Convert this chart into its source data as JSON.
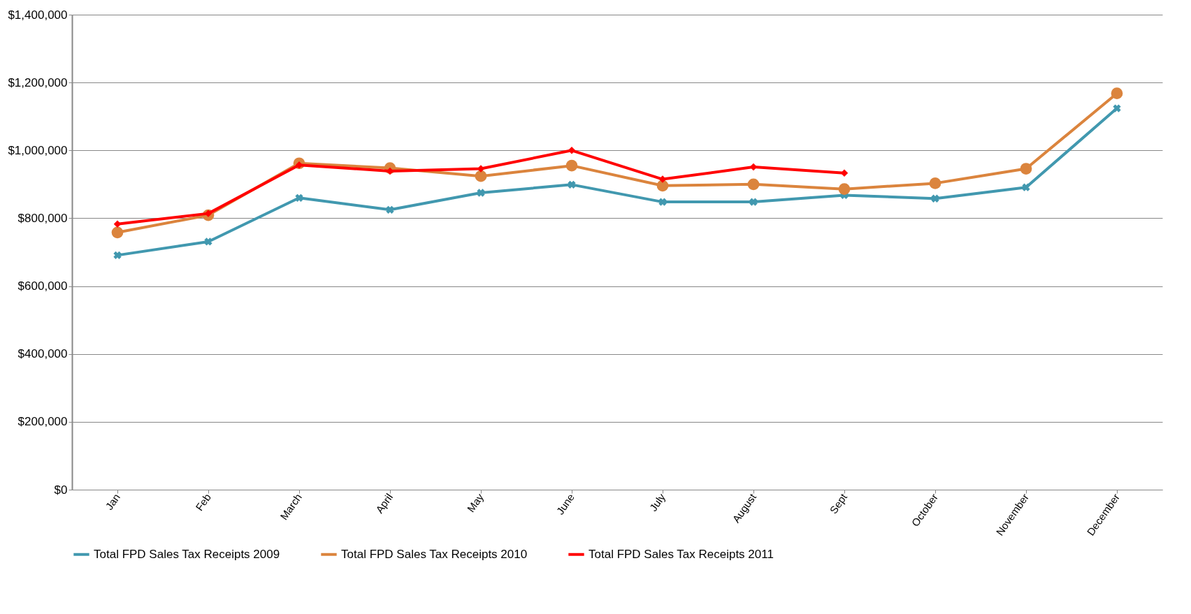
{
  "chart_data": {
    "type": "line",
    "categories": [
      "Jan",
      "Feb",
      "March",
      "April",
      "May",
      "June",
      "July",
      "August",
      "Sept",
      "October",
      "November",
      "December"
    ],
    "series": [
      {
        "name": "Total FPD Sales Tax Receipts 2009",
        "color": "#4198af",
        "marker": "cross",
        "values": [
          691000,
          731000,
          860000,
          825000,
          875000,
          899000,
          848000,
          848000,
          868000,
          858000,
          891000,
          1124000
        ]
      },
      {
        "name": "Total FPD Sales Tax Receipts 2010",
        "color": "#db843d",
        "marker": "circle",
        "values": [
          758000,
          809000,
          962000,
          948000,
          924000,
          955000,
          896000,
          900000,
          886000,
          903000,
          946000,
          1168000
        ]
      },
      {
        "name": "Total FPD Sales Tax Receipts 2011",
        "color": "#ff0000",
        "marker": "diamond",
        "values": [
          783000,
          814000,
          957000,
          939000,
          946000,
          1000000,
          915000,
          951000,
          933000,
          null,
          null,
          null
        ]
      }
    ],
    "ylim": [
      0,
      1400000
    ],
    "yticks": [
      {
        "value": 0,
        "label": "$0"
      },
      {
        "value": 200000,
        "label": "$200,000"
      },
      {
        "value": 400000,
        "label": "$400,000"
      },
      {
        "value": 600000,
        "label": "$600,000"
      },
      {
        "value": 800000,
        "label": "$800,000"
      },
      {
        "value": 1000000,
        "label": "$1,000,000"
      },
      {
        "value": 1200000,
        "label": "$1,200,000"
      },
      {
        "value": 1400000,
        "label": "$1,400,000"
      }
    ],
    "grid": "y",
    "legend": "bottom",
    "line_style": "solid"
  }
}
